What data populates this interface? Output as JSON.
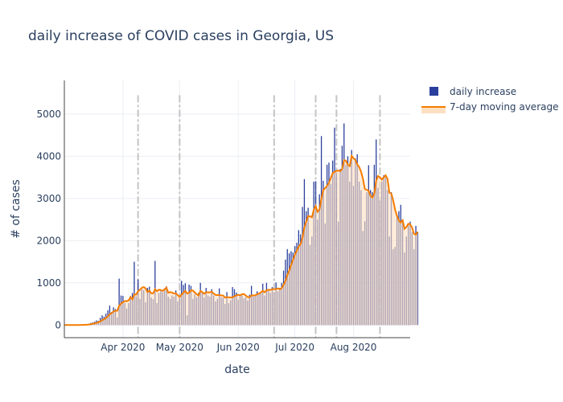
{
  "chart_data": {
    "type": "bar",
    "title": "daily increase of COVID cases in Georgia, US",
    "xlabel": "date",
    "ylabel": "# of cases",
    "x_range": [
      "2020-03-01",
      "2020-08-31"
    ],
    "ylim": [
      -300,
      5800
    ],
    "yticks": [
      0,
      1000,
      2000,
      3000,
      4000,
      5000
    ],
    "xticks": [
      {
        "date": "2020-04-01",
        "label": "Apr 2020"
      },
      {
        "date": "2020-05-01",
        "label": "May 2020"
      },
      {
        "date": "2020-06-01",
        "label": "Jun 2020"
      },
      {
        "date": "2020-07-01",
        "label": "Jul 2020"
      },
      {
        "date": "2020-08-01",
        "label": "Aug 2020"
      }
    ],
    "event_lines": [
      "2020-04-09",
      "2020-05-01",
      "2020-06-20",
      "2020-07-12",
      "2020-07-23",
      "2020-08-15"
    ],
    "legend": [
      "daily increase",
      "7-day moving average"
    ],
    "bar_color": "#2a3f9d",
    "line_color": "#f57c00",
    "fill_color": "#fde0c2",
    "start_date": "2020-03-01",
    "daily_increase": [
      0,
      0,
      0,
      0,
      0,
      0,
      0,
      2,
      5,
      8,
      10,
      15,
      20,
      30,
      50,
      60,
      80,
      110,
      100,
      170,
      230,
      200,
      270,
      350,
      460,
      310,
      420,
      380,
      180,
      1100,
      700,
      690,
      520,
      390,
      520,
      690,
      760,
      1500,
      680,
      1080,
      620,
      840,
      830,
      540,
      880,
      910,
      650,
      610,
      1520,
      520,
      760,
      840,
      780,
      870,
      920,
      670,
      620,
      700,
      670,
      820,
      560,
      630,
      1050,
      950,
      990,
      230,
      960,
      930,
      620,
      730,
      660,
      760,
      1000,
      770,
      650,
      880,
      700,
      670,
      850,
      700,
      560,
      620,
      870,
      660,
      650,
      500,
      780,
      520,
      590,
      900,
      850,
      770,
      600,
      700,
      700,
      630,
      660,
      580,
      720,
      930,
      700,
      720,
      800,
      760,
      790,
      980,
      700,
      1000,
      830,
      760,
      900,
      780,
      1010,
      800,
      880,
      1000,
      1290,
      1550,
      1800,
      1700,
      1750,
      1720,
      1870,
      1950,
      2250,
      2150,
      2800,
      3460,
      2700,
      2780,
      1900,
      2100,
      3400,
      3410,
      2500,
      3100,
      4480,
      3420,
      2410,
      3800,
      3850,
      3350,
      3900,
      4680,
      3600,
      2450,
      3700,
      4250,
      4780,
      3800,
      4000,
      3400,
      4150,
      3300,
      3950,
      4050,
      3400,
      3200,
      2230,
      2460,
      3150,
      3790,
      3200,
      3150,
      3800,
      4400,
      3250,
      2950,
      3400,
      3550,
      3500,
      3200,
      2100,
      3150,
      1800,
      1850,
      2550,
      2700,
      2850,
      2500,
      1720,
      2100,
      2380,
      2450,
      2200,
      1800,
      2350,
      2200
    ]
  }
}
